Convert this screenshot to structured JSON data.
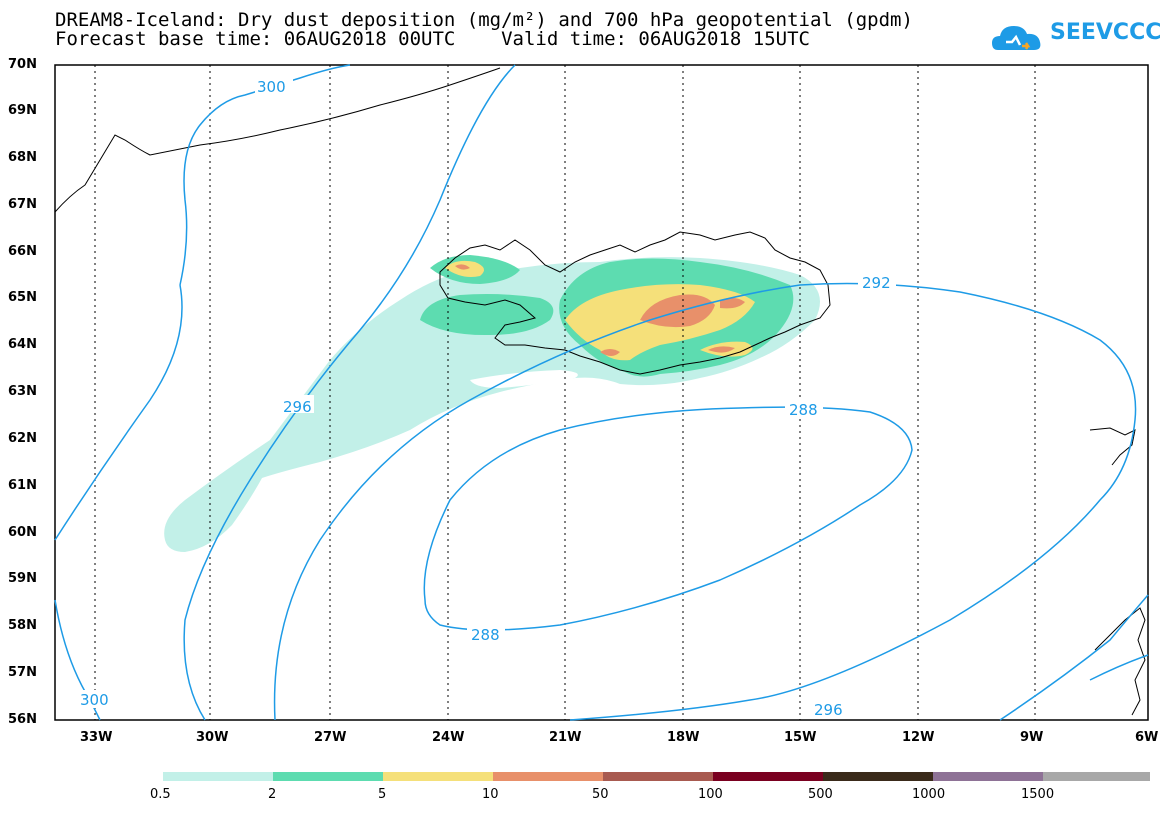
{
  "header": {
    "title_line1": "DREAM8-Iceland: Dry dust deposition (mg/m²) and 700 hPa geopotential (gpdm)",
    "title_line2": "Forecast base time: 06AUG2018 00UTC    Valid time: 06AUG2018 15UTC",
    "logo_text": "SEEVCCC"
  },
  "map": {
    "lat_labels": [
      "70N",
      "69N",
      "68N",
      "67N",
      "66N",
      "65N",
      "64N",
      "63N",
      "62N",
      "61N",
      "60N",
      "59N",
      "58N",
      "57N",
      "56N"
    ],
    "lon_labels": [
      "33W",
      "30W",
      "27W",
      "24W",
      "21W",
      "18W",
      "15W",
      "12W",
      "9W",
      "6W"
    ],
    "contour_labels": [
      "300",
      "300",
      "296",
      "292",
      "288",
      "288",
      "296"
    ],
    "contour_color": "#1e9be6",
    "coast_color": "#000000"
  },
  "colorbar": {
    "labels": [
      "0.5",
      "2",
      "5",
      "10",
      "50",
      "100",
      "500",
      "1000",
      "1500"
    ],
    "colors": [
      "#c2f0e8",
      "#5ddcb0",
      "#f5e07a",
      "#e8906a",
      "#a85a50",
      "#7a0020",
      "#3a2a1a",
      "#8e7296",
      "#a8a8a8"
    ]
  }
}
